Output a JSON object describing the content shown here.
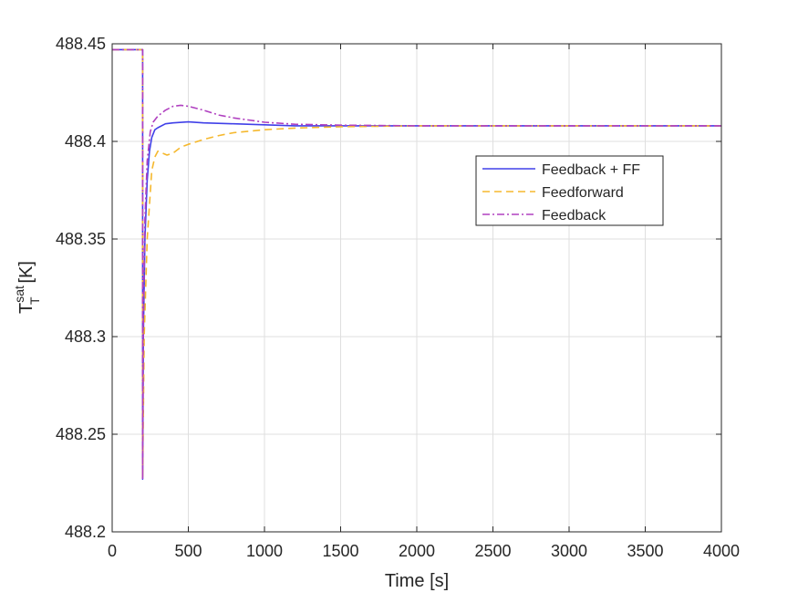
{
  "chart_data": {
    "type": "line",
    "title": "",
    "xlabel": "Time [s]",
    "ylabel": {
      "base": "T",
      "superscript": "sat",
      "subscript": "T",
      "unit": "[K]"
    },
    "xlim": [
      0,
      4000
    ],
    "ylim": [
      488.2,
      488.45
    ],
    "xticks": [
      0,
      500,
      1000,
      1500,
      2000,
      2500,
      3000,
      3500,
      4000
    ],
    "xtick_labels": [
      "0",
      "500",
      "1000",
      "1500",
      "2000",
      "2500",
      "3000",
      "3500",
      "4000"
    ],
    "yticks": [
      488.2,
      488.25,
      488.3,
      488.35,
      488.4,
      488.45
    ],
    "ytick_labels": [
      "488.2",
      "488.25",
      "488.3",
      "488.35",
      "488.4",
      "488.45"
    ],
    "grid": true,
    "legend_position": "upper-right",
    "series": [
      {
        "name": "Feedback + FF",
        "color": "#4040e8",
        "style": "solid",
        "x": [
          0,
          199,
          200,
          200,
          205,
          215,
          230,
          245,
          260,
          280,
          300,
          350,
          400,
          500,
          600,
          800,
          1000,
          1200,
          1500,
          2000,
          4000
        ],
        "y": [
          488.447,
          488.447,
          488.447,
          488.227,
          488.3,
          488.35,
          488.38,
          488.395,
          488.402,
          488.406,
          488.407,
          488.409,
          488.4095,
          488.41,
          488.4095,
          488.409,
          488.4085,
          488.408,
          488.408,
          488.408,
          488.408
        ]
      },
      {
        "name": "Feedforward",
        "color": "#f5b82e",
        "style": "dashed",
        "x": [
          0,
          199,
          200,
          200,
          210,
          230,
          260,
          280,
          300,
          330,
          360,
          400,
          450,
          500,
          600,
          700,
          800,
          1000,
          1200,
          1500,
          2000,
          2500,
          4000
        ],
        "y": [
          488.447,
          488.447,
          488.447,
          488.227,
          488.3,
          488.35,
          488.385,
          488.392,
          488.395,
          488.394,
          488.393,
          488.394,
          488.397,
          488.3985,
          488.401,
          488.403,
          488.4045,
          488.406,
          488.4068,
          488.4075,
          488.408,
          488.408,
          488.408
        ]
      },
      {
        "name": "Feedback",
        "color": "#b040c0",
        "style": "dashdot",
        "x": [
          0,
          199,
          200,
          200,
          205,
          215,
          230,
          250,
          270,
          300,
          350,
          400,
          450,
          500,
          600,
          700,
          800,
          1000,
          1200,
          1500,
          2000,
          4000
        ],
        "y": [
          488.447,
          488.447,
          488.447,
          488.227,
          488.31,
          488.36,
          488.39,
          488.405,
          488.41,
          488.413,
          488.416,
          488.418,
          488.4185,
          488.418,
          488.416,
          488.4135,
          488.412,
          488.4098,
          488.4088,
          488.4083,
          488.408,
          488.408
        ]
      }
    ]
  }
}
